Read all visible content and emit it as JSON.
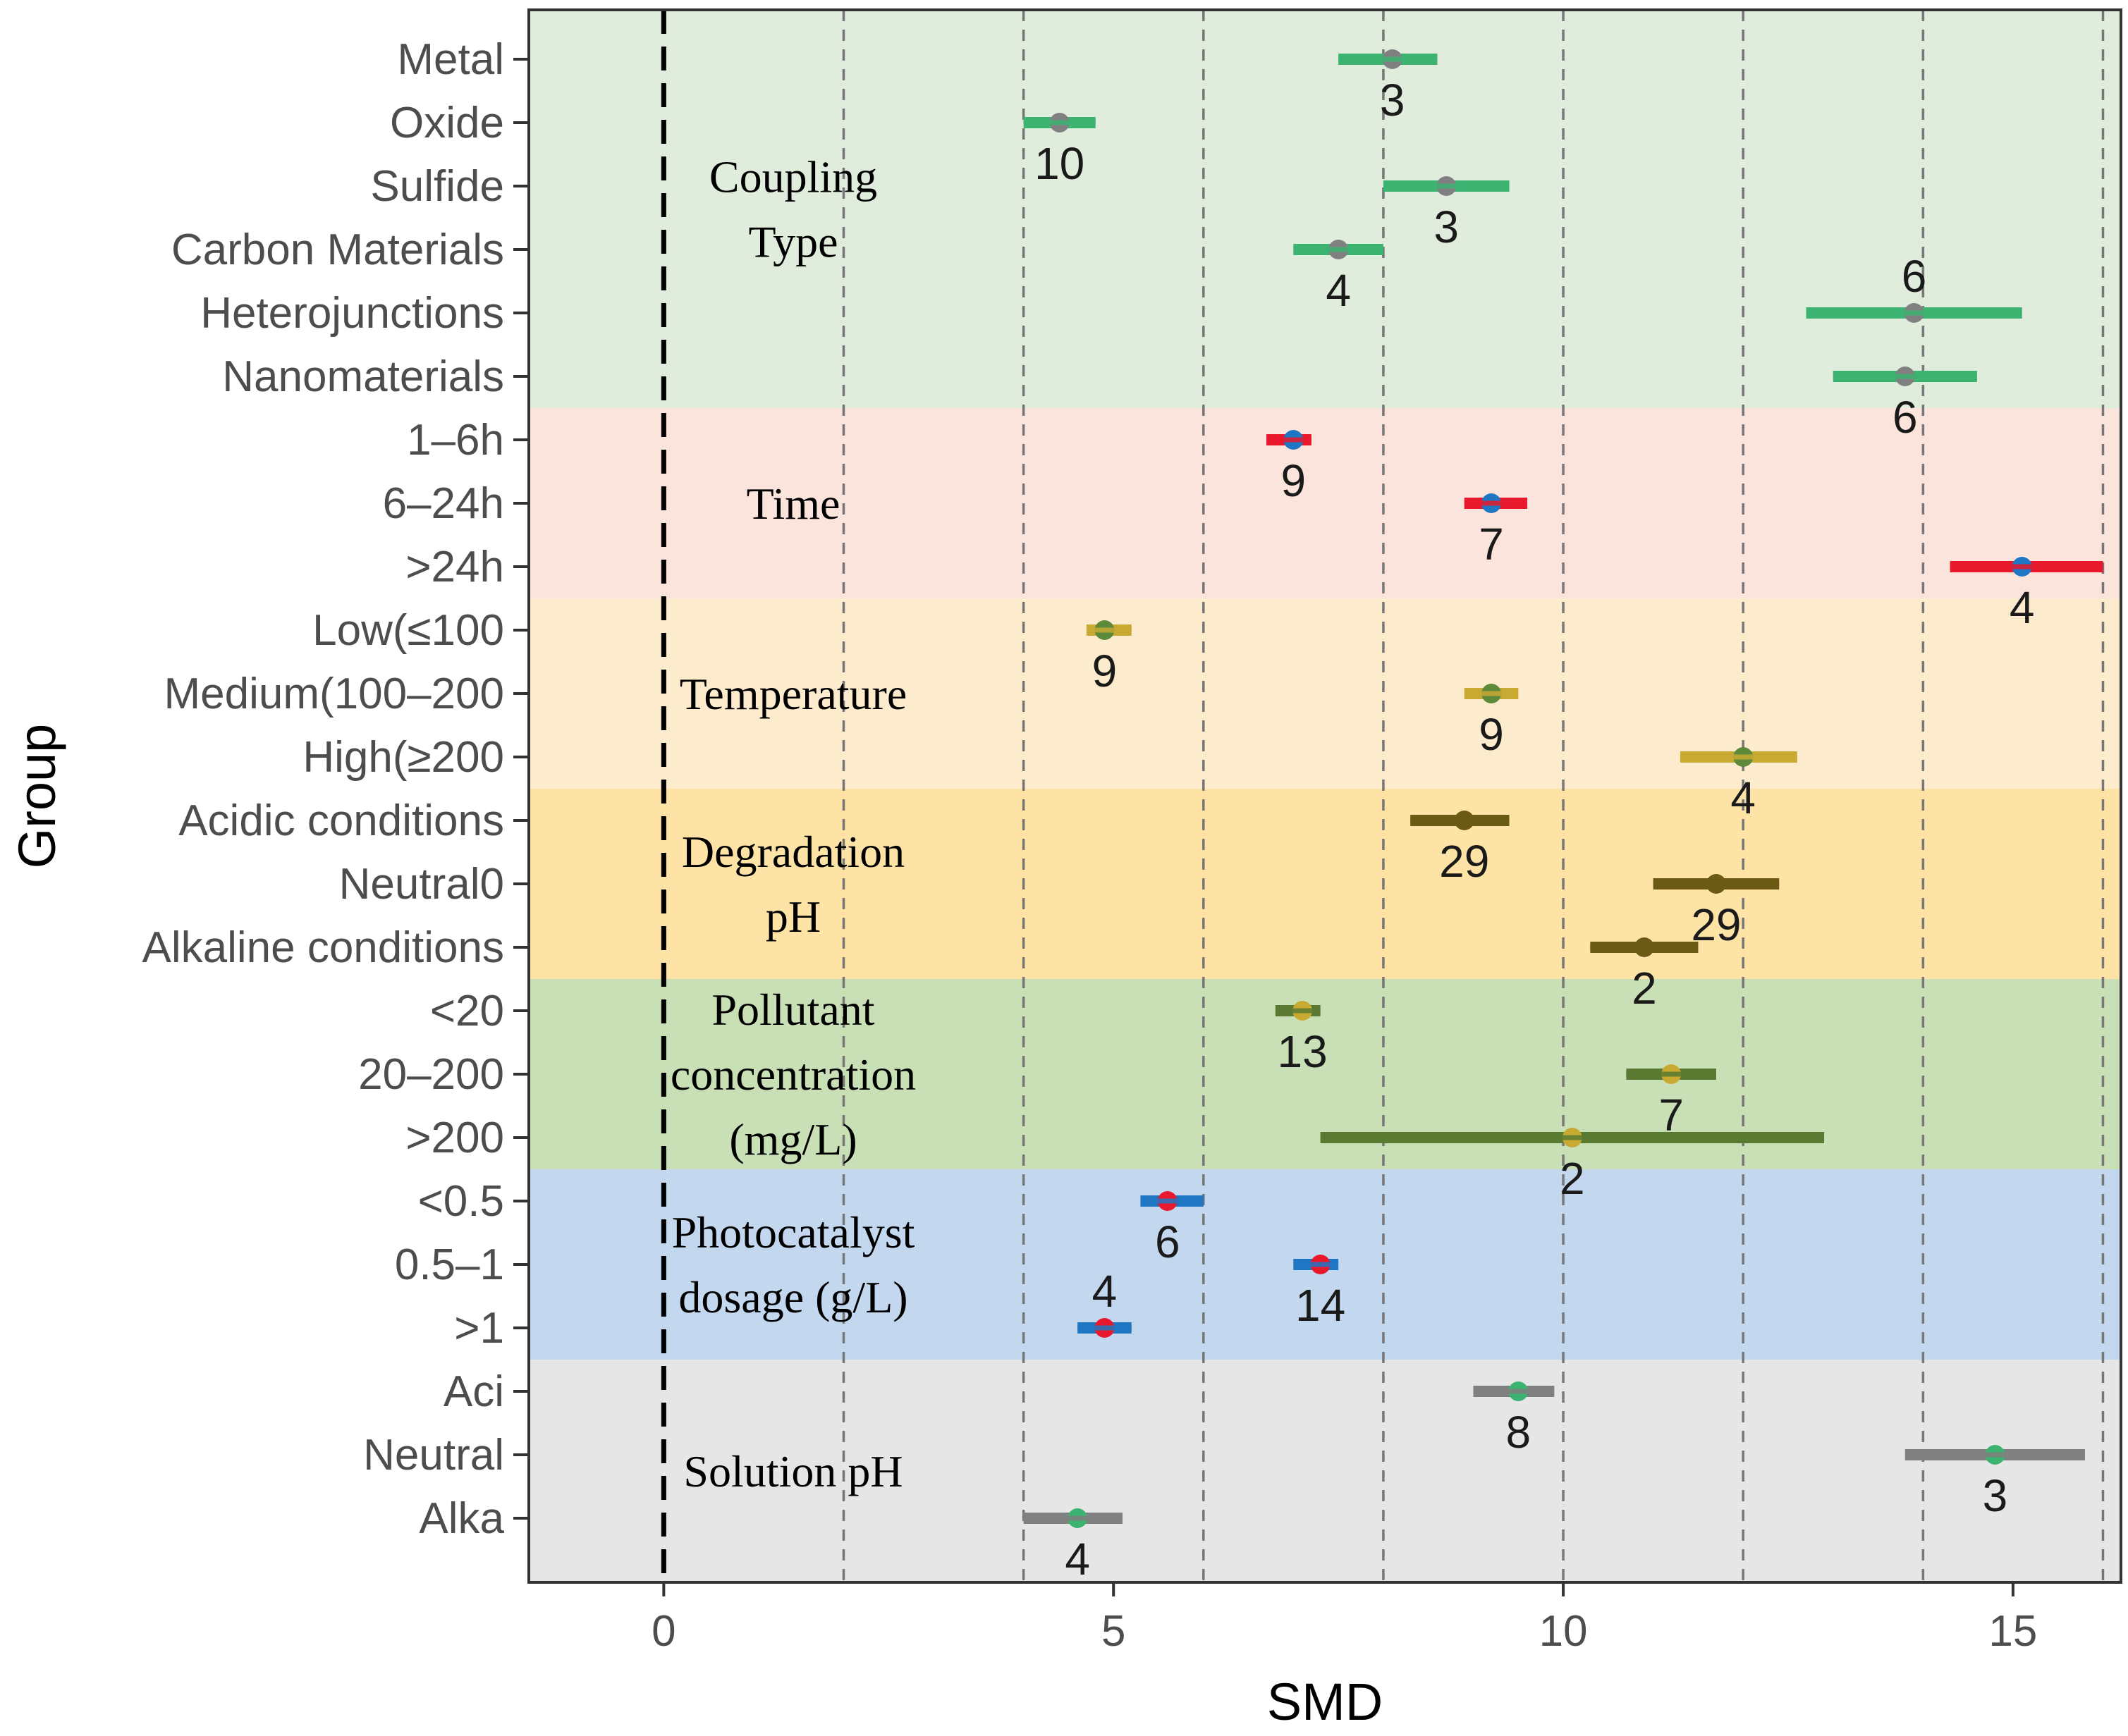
{
  "chart_data": {
    "type": "forest",
    "xlabel": "SMD",
    "ylabel": "Group",
    "xlim": [
      -1.5,
      16.2
    ],
    "x_ticks": [
      0,
      5,
      10,
      15
    ],
    "reference_line": 0,
    "minor_dashed_lines": [
      2,
      4,
      6,
      8,
      10,
      12,
      14,
      16
    ],
    "groups": [
      {
        "label_lines": [
          "Coupling",
          "Type"
        ],
        "color": "#e0ecdc",
        "rows": [
          0,
          5
        ]
      },
      {
        "label_lines": [
          "Time"
        ],
        "color": "#fbe4dc",
        "rows": [
          6,
          8
        ]
      },
      {
        "label_lines": [
          "Temperature"
        ],
        "color": "#fdebcd",
        "rows": [
          9,
          11
        ]
      },
      {
        "label_lines": [
          "Degradation",
          "pH"
        ],
        "color": "#fde3a6",
        "rows": [
          12,
          14
        ]
      },
      {
        "label_lines": [
          "Pollutant",
          "concentration",
          "(mg/L)"
        ],
        "color": "#c9e0b6",
        "rows": [
          15,
          17
        ]
      },
      {
        "label_lines": [
          "Photocatalyst",
          "dosage (g/L)"
        ],
        "color": "#c3d7ee",
        "rows": [
          18,
          20
        ]
      },
      {
        "label_lines": [
          "Solution pH"
        ],
        "color": "#e6e6e6",
        "rows": [
          21,
          23
        ]
      }
    ],
    "rows": [
      {
        "category": "Metal",
        "smd": 8.1,
        "ci": [
          7.5,
          8.6
        ],
        "n": "3",
        "bar_color": "#3cb371",
        "point_color": "#808080",
        "n_pos": "below"
      },
      {
        "category": "Oxide",
        "smd": 4.4,
        "ci": [
          4.0,
          4.8
        ],
        "n": "10",
        "bar_color": "#3cb371",
        "point_color": "#808080",
        "n_pos": "below"
      },
      {
        "category": "Sulfide",
        "smd": 8.7,
        "ci": [
          8.0,
          9.4
        ],
        "n": "3",
        "bar_color": "#3cb371",
        "point_color": "#808080",
        "n_pos": "below"
      },
      {
        "category": "Carbon Materials",
        "smd": 7.5,
        "ci": [
          7.0,
          8.0
        ],
        "n": "4",
        "bar_color": "#3cb371",
        "point_color": "#808080",
        "n_pos": "below"
      },
      {
        "category": "Heterojunctions",
        "smd": 13.9,
        "ci": [
          12.7,
          15.1
        ],
        "n": "6",
        "bar_color": "#3cb371",
        "point_color": "#808080",
        "n_pos": "above"
      },
      {
        "category": "Nanomaterials",
        "smd": 13.8,
        "ci": [
          13.0,
          14.6
        ],
        "n": "6",
        "bar_color": "#3cb371",
        "point_color": "#808080",
        "n_pos": "below"
      },
      {
        "category": "1–6h",
        "smd": 7.0,
        "ci": [
          6.7,
          7.2
        ],
        "n": "9",
        "bar_color": "#e8192c",
        "point_color": "#1f77c4",
        "n_pos": "below"
      },
      {
        "category": "6–24h",
        "smd": 9.2,
        "ci": [
          8.9,
          9.6
        ],
        "n": "7",
        "bar_color": "#e8192c",
        "point_color": "#1f77c4",
        "n_pos": "below"
      },
      {
        "category": ">24h",
        "smd": 15.1,
        "ci": [
          14.3,
          16.0
        ],
        "n": "4",
        "bar_color": "#e8192c",
        "point_color": "#1f77c4",
        "n_pos": "below"
      },
      {
        "category": "Low(≤100",
        "smd": 4.9,
        "ci": [
          4.7,
          5.2
        ],
        "n": "9",
        "bar_color": "#c8aa32",
        "point_color": "#5c8a3a",
        "n_pos": "below"
      },
      {
        "category": "Medium(100–200",
        "smd": 9.2,
        "ci": [
          8.9,
          9.5
        ],
        "n": "9",
        "bar_color": "#c8aa32",
        "point_color": "#5c8a3a",
        "n_pos": "below"
      },
      {
        "category": "High(≥200",
        "smd": 12.0,
        "ci": [
          11.3,
          12.6
        ],
        "n": "4",
        "bar_color": "#c8aa32",
        "point_color": "#5c8a3a",
        "n_pos": "below"
      },
      {
        "category": "Acidic conditions",
        "smd": 8.9,
        "ci": [
          8.3,
          9.4
        ],
        "n": "29",
        "bar_color": "#6b5a14",
        "point_color": "#6b5a14",
        "n_pos": "below"
      },
      {
        "category": "Neutral0",
        "smd": 11.7,
        "ci": [
          11.0,
          12.4
        ],
        "n": "29",
        "bar_color": "#6b5a14",
        "point_color": "#6b5a14",
        "n_pos": "below"
      },
      {
        "category": "Alkaline conditions",
        "smd": 10.9,
        "ci": [
          10.3,
          11.5
        ],
        "n": "2",
        "bar_color": "#6b5a14",
        "point_color": "#6b5a14",
        "n_pos": "below"
      },
      {
        "category": "<20",
        "smd": 7.1,
        "ci": [
          6.8,
          7.3
        ],
        "n": "13",
        "bar_color": "#5a7a32",
        "point_color": "#c8aa32",
        "n_pos": "below"
      },
      {
        "category": "20–200",
        "smd": 11.2,
        "ci": [
          10.7,
          11.7
        ],
        "n": "7",
        "bar_color": "#5a7a32",
        "point_color": "#c8aa32",
        "n_pos": "below"
      },
      {
        "category": ">200",
        "smd": 10.1,
        "ci": [
          7.3,
          12.9
        ],
        "n": "2",
        "bar_color": "#5a7a32",
        "point_color": "#c8aa32",
        "n_pos": "below"
      },
      {
        "category": "<0.5",
        "smd": 5.6,
        "ci": [
          5.3,
          6.0
        ],
        "n": "6",
        "bar_color": "#1f77c4",
        "point_color": "#e8192c",
        "n_pos": "below"
      },
      {
        "category": "0.5–1",
        "smd": 7.3,
        "ci": [
          7.0,
          7.5
        ],
        "n": "14",
        "bar_color": "#1f77c4",
        "point_color": "#e8192c",
        "n_pos": "below"
      },
      {
        "category": ">1",
        "smd": 4.9,
        "ci": [
          4.6,
          5.2
        ],
        "n": "4",
        "bar_color": "#1f77c4",
        "point_color": "#e8192c",
        "n_pos": "above"
      },
      {
        "category": "Aci",
        "smd": 9.5,
        "ci": [
          9.0,
          9.9
        ],
        "n": "8",
        "bar_color": "#808080",
        "point_color": "#3cb371",
        "n_pos": "below"
      },
      {
        "category": "Neutral",
        "smd": 14.8,
        "ci": [
          13.8,
          15.8
        ],
        "n": "3",
        "bar_color": "#808080",
        "point_color": "#3cb371",
        "n_pos": "below"
      },
      {
        "category": "Alka",
        "smd": 4.6,
        "ci": [
          4.0,
          5.1
        ],
        "n": "4",
        "bar_color": "#808080",
        "point_color": "#3cb371",
        "n_pos": "below"
      }
    ]
  }
}
